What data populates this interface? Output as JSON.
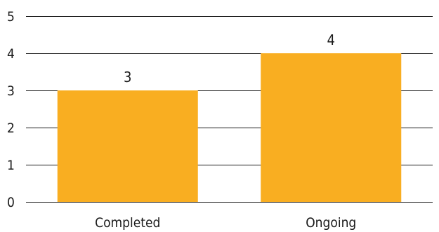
{
  "chart_data": {
    "type": "bar",
    "categories": [
      "Completed",
      "Ongoing"
    ],
    "values": [
      3,
      4
    ],
    "data_labels": [
      "3",
      "4"
    ],
    "y_ticks": [
      0,
      1,
      2,
      3,
      4,
      5
    ],
    "ylim": [
      0,
      5
    ],
    "title": "",
    "xlabel": "",
    "ylabel": "",
    "grid": true,
    "legend": "none",
    "bar_color": "#F9AE21",
    "grid_color": "#1A1A1A"
  }
}
